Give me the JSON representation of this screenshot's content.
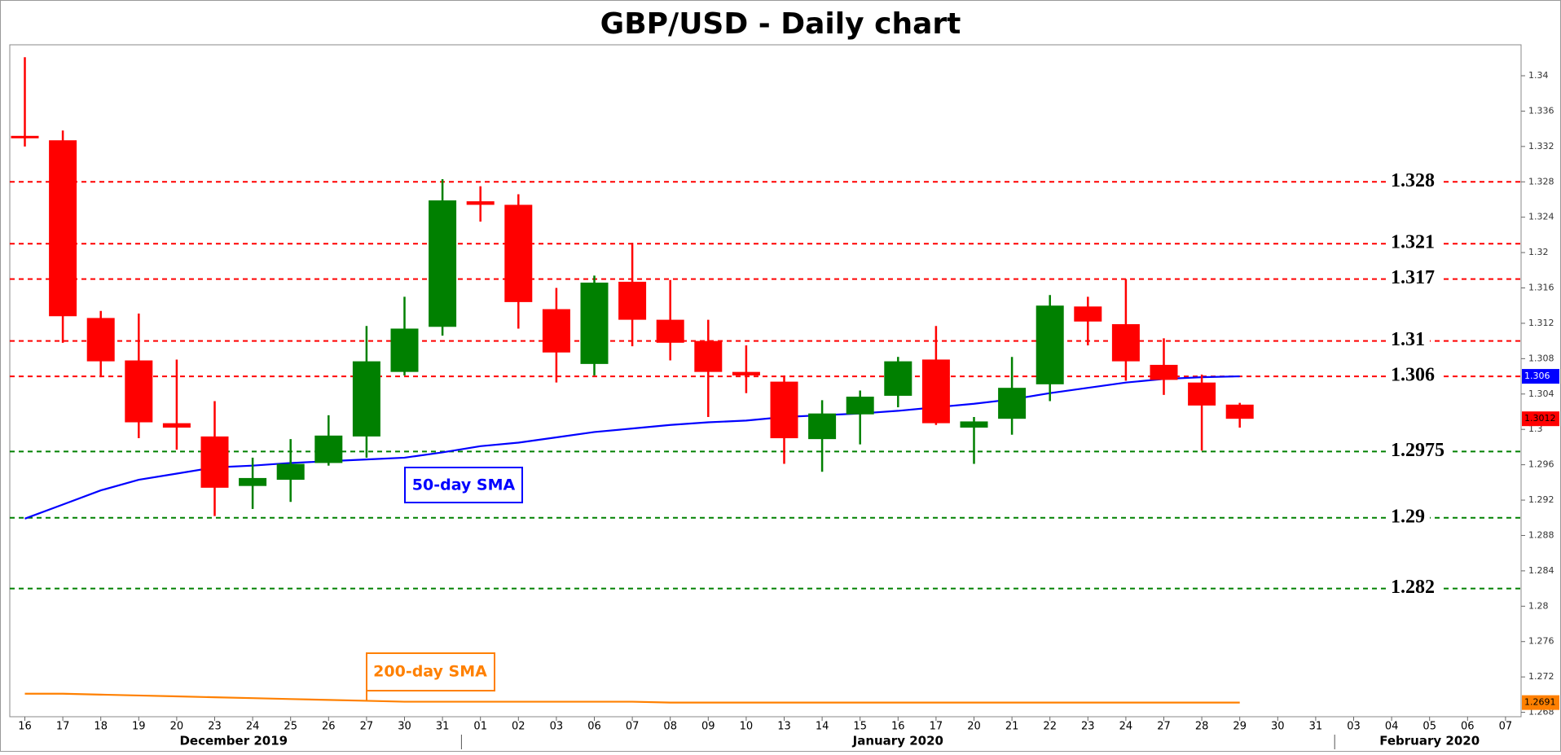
{
  "chart_data": {
    "type": "candlestick",
    "title": "GBP/USD - Daily chart",
    "x": [
      "16",
      "17",
      "18",
      "19",
      "20",
      "23",
      "24",
      "25",
      "26",
      "27",
      "30",
      "31",
      "01",
      "02",
      "03",
      "06",
      "07",
      "08",
      "09",
      "10",
      "13",
      "14",
      "15",
      "16",
      "17",
      "20",
      "21",
      "22",
      "23",
      "24",
      "27",
      "28",
      "29",
      "30",
      "31",
      "03",
      "04",
      "05",
      "06",
      "07"
    ],
    "x_groups": [
      "December 2019",
      "January 2020",
      "February 2020"
    ],
    "open": [
      1.3332,
      1.3327,
      1.3126,
      1.3078,
      1.3007,
      1.2992,
      1.2936,
      1.2943,
      1.2962,
      1.2992,
      1.3065,
      1.3116,
      1.3258,
      1.3254,
      1.3136,
      1.3074,
      1.3167,
      1.3124,
      1.31,
      1.3065,
      1.3054,
      1.2989,
      1.3017,
      1.3038,
      1.3079,
      1.3002,
      1.3012,
      1.3051,
      1.3139,
      1.3119,
      1.3073,
      1.3053,
      1.3028,
      null,
      null,
      null,
      null,
      null,
      null,
      null
    ],
    "high": [
      1.3421,
      1.3338,
      1.3134,
      1.3131,
      1.3079,
      1.3032,
      1.2968,
      1.2989,
      1.3016,
      1.3117,
      1.315,
      1.3283,
      1.3275,
      1.3266,
      1.316,
      1.3174,
      1.3211,
      1.3169,
      1.3124,
      1.3095,
      1.3061,
      1.3033,
      1.3044,
      1.3082,
      1.3117,
      1.3014,
      1.3082,
      1.3152,
      1.315,
      1.317,
      1.3103,
      1.3062,
      1.303,
      null,
      null,
      null,
      null,
      null,
      null,
      null
    ],
    "low": [
      1.332,
      1.3098,
      1.3059,
      1.299,
      1.2977,
      1.2902,
      1.291,
      1.2918,
      1.2959,
      1.2968,
      1.3061,
      1.3106,
      1.3235,
      1.3114,
      1.3053,
      1.3061,
      1.3094,
      1.3078,
      1.3014,
      1.3041,
      1.2961,
      1.2952,
      1.2983,
      1.3025,
      1.3005,
      1.2961,
      1.2994,
      1.3032,
      1.3095,
      1.3055,
      1.3039,
      1.2976,
      1.3002,
      null,
      null,
      null,
      null,
      null,
      null,
      null
    ],
    "close": [
      1.333,
      1.3128,
      1.3077,
      1.3008,
      1.3002,
      1.2934,
      1.2945,
      1.2961,
      1.2993,
      1.3077,
      1.3114,
      1.3259,
      1.3254,
      1.3144,
      1.3087,
      1.3166,
      1.3124,
      1.3098,
      1.3065,
      1.3061,
      1.299,
      1.3018,
      1.3037,
      1.3077,
      1.3007,
      1.3009,
      1.3047,
      1.314,
      1.3122,
      1.3077,
      1.3056,
      1.3027,
      1.3012,
      null,
      null,
      null,
      null,
      null,
      null,
      null
    ],
    "up_color": "#008000",
    "down_color": "#ff0000",
    "series": [
      {
        "name": "50-day SMA",
        "color": "#0000ff",
        "values": [
          1.2899,
          1.2915,
          1.2931,
          1.2943,
          1.295,
          1.2957,
          1.2959,
          1.2962,
          1.2964,
          1.2966,
          1.2968,
          1.2974,
          1.2981,
          1.2985,
          1.2991,
          1.2997,
          1.3001,
          1.3005,
          1.3008,
          1.301,
          1.3014,
          1.3016,
          1.3018,
          1.3021,
          1.3025,
          1.3029,
          1.3034,
          1.3041,
          1.3047,
          1.3053,
          1.3057,
          1.3059,
          1.306,
          null,
          null,
          null,
          null,
          null,
          null,
          null
        ]
      },
      {
        "name": "200-day SMA",
        "color": "#ff8000",
        "values": [
          1.2701,
          1.2701,
          1.27,
          1.2699,
          1.2698,
          1.2697,
          1.2696,
          1.2695,
          1.2694,
          1.2693,
          1.2692,
          1.2692,
          1.2692,
          1.2692,
          1.2692,
          1.2692,
          1.2692,
          1.2691,
          1.2691,
          1.2691,
          1.2691,
          1.2691,
          1.2691,
          1.2691,
          1.2691,
          1.2691,
          1.2691,
          1.2691,
          1.2691,
          1.2691,
          1.2691,
          1.2691,
          1.2691,
          null,
          null,
          null,
          null,
          null,
          null,
          null
        ]
      }
    ],
    "levels": [
      {
        "value": 1.328,
        "color": "#ff0000"
      },
      {
        "value": 1.321,
        "color": "#ff0000"
      },
      {
        "value": 1.317,
        "color": "#ff0000"
      },
      {
        "value": 1.31,
        "color": "#ff0000"
      },
      {
        "value": 1.306,
        "color": "#ff0000"
      },
      {
        "value": 1.2975,
        "color": "#008000"
      },
      {
        "value": 1.29,
        "color": "#008000"
      },
      {
        "value": 1.282,
        "color": "#008000"
      }
    ],
    "ylim": [
      1.2675,
      1.3435
    ],
    "yticks": [
      1.268,
      1.272,
      1.276,
      1.28,
      1.284,
      1.288,
      1.292,
      1.296,
      1.3,
      1.304,
      1.308,
      1.312,
      1.316,
      1.32,
      1.324,
      1.328,
      1.332,
      1.336,
      1.34
    ]
  }
}
